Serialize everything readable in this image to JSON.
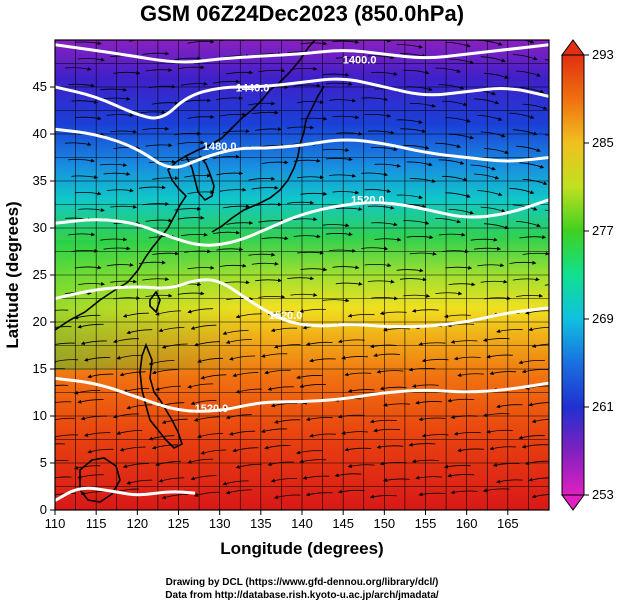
{
  "title": "GSM 06Z24Dec2023 (850.0hPa)",
  "credits": {
    "line1": "Drawing by DCL (https://www.gfd-dennou.org/library/dcl/)",
    "line2": "Data from http://database.rish.kyoto-u.ac.jp/arch/jmadata/"
  },
  "chart_data": {
    "type": "heatmap",
    "xlabel": "Longitude (degrees)",
    "ylabel": "Latitude (degrees)",
    "xlim": [
      110,
      170
    ],
    "ylim": [
      0,
      50
    ],
    "xticks": [
      110,
      115,
      120,
      125,
      130,
      135,
      140,
      145,
      150,
      155,
      160,
      165
    ],
    "yticks": [
      0,
      5,
      10,
      15,
      20,
      25,
      30,
      35,
      40,
      45
    ],
    "colorbar": {
      "min": 253,
      "max": 293,
      "labels": [
        293,
        285,
        277,
        269,
        261,
        253
      ],
      "colors": [
        "#cc10d0",
        "#7a1fc0",
        "#2030d0",
        "#1a7ae0",
        "#10c8e0",
        "#10e090",
        "#40d020",
        "#b0e020",
        "#f0d020",
        "#f09010",
        "#e04010",
        "#d81010"
      ]
    },
    "contours": [
      {
        "label": "1400.0",
        "points": [
          [
            110,
            49.5
          ],
          [
            118,
            48.5
          ],
          [
            125,
            47.5
          ],
          [
            130,
            48
          ],
          [
            135,
            48.3
          ],
          [
            140,
            48.5
          ],
          [
            145,
            49
          ],
          [
            150,
            48.5
          ],
          [
            155,
            48
          ],
          [
            160,
            48.5
          ],
          [
            165,
            49
          ],
          [
            170,
            49.5
          ]
        ]
      },
      {
        "label": "1440.0",
        "points": [
          [
            110,
            45
          ],
          [
            115,
            44
          ],
          [
            120,
            42
          ],
          [
            123,
            41.5
          ],
          [
            126,
            44
          ],
          [
            130,
            45
          ],
          [
            135,
            45
          ],
          [
            140,
            45.5
          ],
          [
            145,
            46
          ],
          [
            150,
            45
          ],
          [
            155,
            44
          ],
          [
            160,
            44.5
          ],
          [
            165,
            45
          ],
          [
            170,
            44
          ]
        ]
      },
      {
        "label": "1480.0",
        "points": [
          [
            110,
            40.5
          ],
          [
            115,
            40
          ],
          [
            120,
            38.5
          ],
          [
            124,
            36
          ],
          [
            128,
            37.5
          ],
          [
            132,
            38.5
          ],
          [
            136,
            38.5
          ],
          [
            140,
            38.8
          ],
          [
            145,
            39.5
          ],
          [
            150,
            39
          ],
          [
            155,
            38
          ],
          [
            160,
            37.5
          ],
          [
            165,
            37
          ],
          [
            170,
            37.5
          ]
        ]
      },
      {
        "label": "1520.0",
        "points": [
          [
            110,
            30.5
          ],
          [
            115,
            31
          ],
          [
            120,
            30.5
          ],
          [
            124,
            29
          ],
          [
            128,
            28
          ],
          [
            132,
            28.5
          ],
          [
            136,
            30
          ],
          [
            140,
            31.5
          ],
          [
            145,
            32.5
          ],
          [
            150,
            32.8
          ],
          [
            155,
            32
          ],
          [
            160,
            31
          ],
          [
            165,
            31.5
          ],
          [
            170,
            33
          ]
        ]
      },
      {
        "label": "1520.0",
        "points": [
          [
            110,
            22.5
          ],
          [
            115,
            23.5
          ],
          [
            120,
            23.8
          ],
          [
            124,
            23.5
          ],
          [
            127,
            24.5
          ],
          [
            130,
            24.5
          ],
          [
            134,
            22
          ],
          [
            138,
            20
          ],
          [
            142,
            19.5
          ],
          [
            146,
            19.8
          ],
          [
            150,
            19.5
          ],
          [
            155,
            19.5
          ],
          [
            160,
            20
          ],
          [
            165,
            21
          ],
          [
            170,
            21.5
          ]
        ]
      },
      {
        "label": "1520.0",
        "points": [
          [
            110,
            14
          ],
          [
            115,
            13.5
          ],
          [
            120,
            12
          ],
          [
            125,
            10.5
          ],
          [
            130,
            10.5
          ],
          [
            135,
            11.5
          ],
          [
            140,
            11.5
          ],
          [
            145,
            11.8
          ],
          [
            150,
            12.5
          ],
          [
            155,
            12.8
          ],
          [
            160,
            12.5
          ],
          [
            165,
            12.8
          ],
          [
            170,
            13.5
          ]
        ]
      },
      {
        "label": "",
        "points": [
          [
            110,
            1
          ],
          [
            113,
            2.5
          ],
          [
            117,
            2
          ],
          [
            120,
            1.5
          ],
          [
            124,
            2
          ],
          [
            127,
            1.8
          ]
        ]
      }
    ],
    "contour_label_positions": [
      {
        "label": "1400.0",
        "x": 147,
        "y": 47.5
      },
      {
        "label": "1440.0",
        "x": 134,
        "y": 44.5
      },
      {
        "label": "1480.0",
        "x": 130,
        "y": 38.3
      },
      {
        "label": "1520.0",
        "x": 148,
        "y": 32.6
      },
      {
        "label": "1520.0",
        "x": 138,
        "y": 20.3
      },
      {
        "label": "1520.0",
        "x": 129,
        "y": 10.4
      }
    ]
  }
}
